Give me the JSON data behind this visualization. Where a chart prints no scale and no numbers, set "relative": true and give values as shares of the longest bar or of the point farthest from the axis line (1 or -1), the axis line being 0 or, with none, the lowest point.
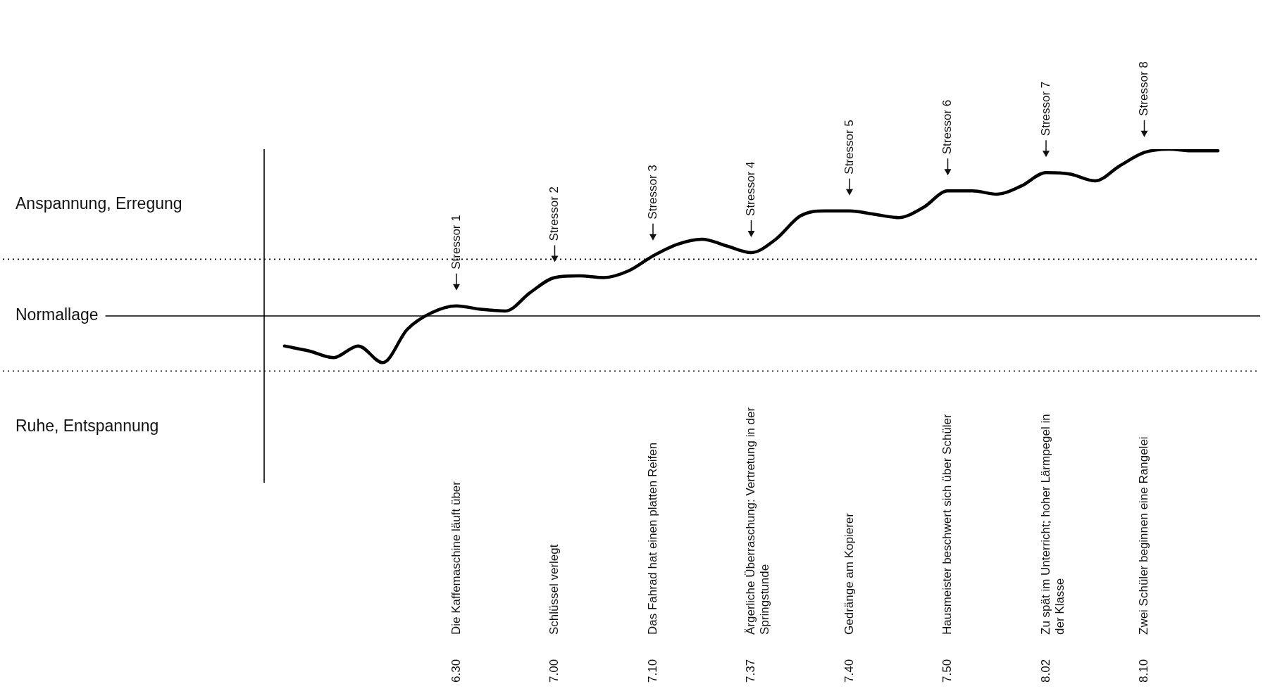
{
  "chart_data": {
    "type": "line",
    "relative": true,
    "marker": "none",
    "line_style": "solid",
    "legend": false,
    "tick_labels": "x",
    "color": "#000000",
    "categories": [
      null,
      null,
      null,
      null,
      null,
      null,
      null,
      null,
      "6.30",
      null,
      null,
      null,
      "7.00",
      null,
      null,
      null,
      "7.10",
      null,
      null,
      null,
      "7.37",
      null,
      null,
      null,
      "7.40",
      null,
      null,
      null,
      "7.50",
      null,
      null,
      null,
      "8.02",
      null,
      null,
      null,
      "8.10",
      null,
      null,
      null,
      null
    ],
    "values": [
      null,
      -0.18,
      -0.21,
      -0.25,
      -0.18,
      -0.28,
      -0.08,
      0.02,
      0.06,
      0.04,
      0.03,
      0.14,
      0.23,
      0.24,
      0.23,
      0.27,
      0.36,
      0.43,
      0.46,
      0.42,
      0.38,
      0.46,
      0.6,
      0.63,
      0.63,
      0.61,
      0.59,
      0.65,
      0.75,
      0.75,
      0.73,
      0.78,
      0.86,
      0.85,
      0.81,
      0.9,
      0.98,
      1,
      0.99,
      0.99,
      null
    ],
    "ref_lines": [
      {
        "axis": "y",
        "value": 0,
        "label": "Normallage",
        "line_style": "solid"
      },
      {
        "axis": "y",
        "value": 0.34,
        "label": "Anspannung, Erregung",
        "line_style": "dotted"
      },
      {
        "axis": "y",
        "value": -0.33,
        "label": "Ruhe, Entspannung",
        "line_style": "dotted"
      }
    ],
    "annotations": [
      "Stressor 1",
      "Stressor 2",
      "Stressor 3",
      "Stressor 4",
      "Stressor 5",
      "Stressor 6",
      "Stressor 7",
      "Stressor 8",
      "Die Kaffemaschine läuft über",
      "Schlüssel verlegt",
      "Das Fahrad hat einen platten Reifen",
      "Ärgerliche Überraschung: Vertretung in der Springstunde",
      "Gedränge am Kopierer",
      "Hausmeister beschwert sich über Schüler",
      "Zu spät im Unterricht; hoher Lärmpegel in der Klasse",
      "Zwei Schüler beginnen eine Rangelei"
    ]
  }
}
